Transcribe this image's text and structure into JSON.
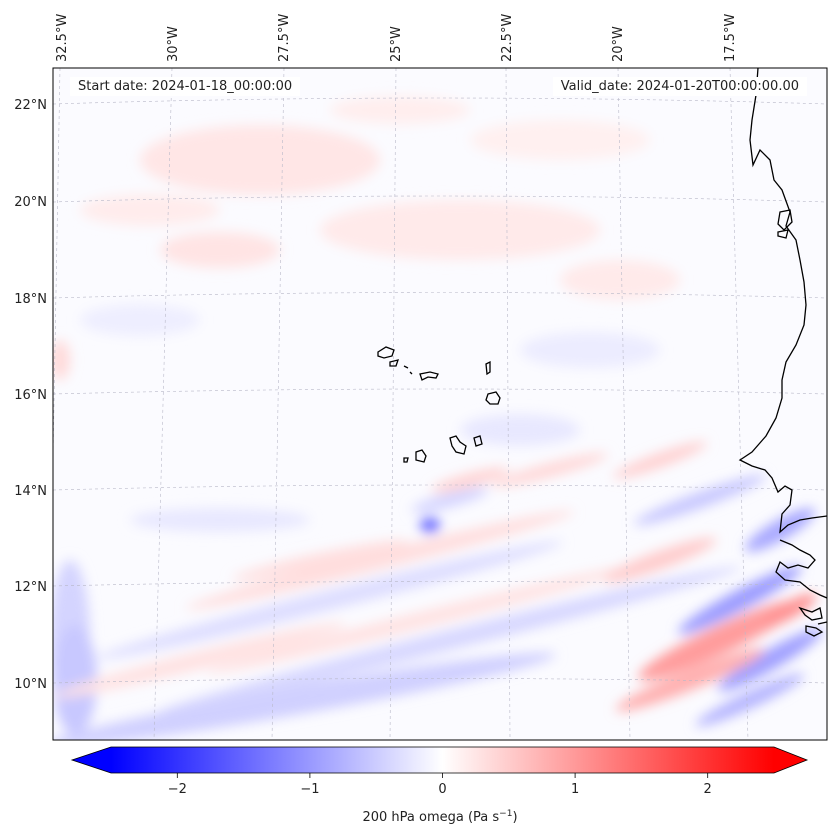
{
  "figure": {
    "start_date_label": "Start date: 2024-01-18_00:00:00",
    "valid_date_label": "Valid_date: 2024-01-20T00:00:00.00",
    "longitude_ticks": [
      "32.5°W",
      "30°W",
      "27.5°W",
      "25°W",
      "22.5°W",
      "20°W",
      "17.5°W"
    ],
    "latitude_ticks": [
      "22°N",
      "20°N",
      "18°N",
      "16°N",
      "14°N",
      "12°N",
      "10°N"
    ]
  },
  "colorbar": {
    "label_text": "200 hPa omega (Pa s",
    "label_superscript": "−1",
    "label_suffix": ")",
    "ticks": [
      "−2",
      "−1",
      "0",
      "1",
      "2"
    ],
    "tick_values": [
      -2,
      -1,
      0,
      1,
      2
    ],
    "range": [
      -2.5,
      2.5
    ],
    "colormap": "bwr",
    "color_negative": "#0000ff",
    "color_zero": "#ffffff",
    "color_positive": "#ff0000",
    "extend": "both"
  },
  "map_features": [
    "coastline",
    "gridlines",
    "cape-verde-islands",
    "west-africa-coast"
  ]
}
